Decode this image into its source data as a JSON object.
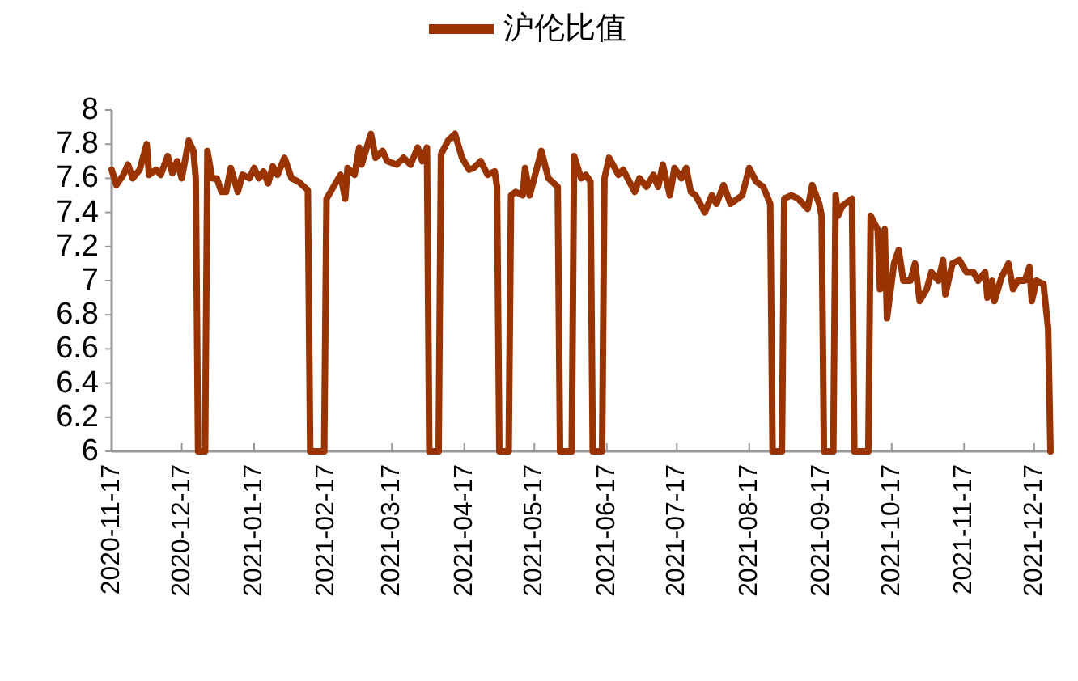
{
  "chart_data": {
    "type": "line",
    "legend": "top",
    "grid": false,
    "marker": "none",
    "line_style": "solid",
    "xlim": [
      "2020-11-17",
      "2021-12-24"
    ],
    "xticks": [
      "2020-11-17",
      "2020-12-17",
      "2021-01-17",
      "2021-02-17",
      "2021-03-17",
      "2021-04-17",
      "2021-05-17",
      "2021-06-17",
      "2021-07-17",
      "2021-08-17",
      "2021-09-17",
      "2021-10-17",
      "2021-11-17",
      "2021-12-17"
    ],
    "ylim": [
      6,
      8
    ],
    "yticks": [
      6,
      6.2,
      6.4,
      6.6,
      6.8,
      7,
      7.2,
      7.4,
      7.6,
      7.8,
      8
    ],
    "x": [
      "2020-11-17",
      "2020-11-19",
      "2020-11-22",
      "2020-11-24",
      "2020-11-26",
      "2020-11-29",
      "2020-12-02",
      "2020-12-03",
      "2020-12-06",
      "2020-12-08",
      "2020-12-11",
      "2020-12-13",
      "2020-12-15",
      "2020-12-17",
      "2020-12-20",
      "2020-12-22",
      "2020-12-23",
      "2020-12-24",
      "2020-12-27",
      "2020-12-28",
      "2020-12-30",
      "2021-01-01",
      "2021-01-03",
      "2021-01-05",
      "2021-01-07",
      "2021-01-10",
      "2021-01-12",
      "2021-01-15",
      "2021-01-17",
      "2021-01-19",
      "2021-01-21",
      "2021-01-23",
      "2021-01-25",
      "2021-01-27",
      "2021-01-30",
      "2021-02-02",
      "2021-02-05",
      "2021-02-09",
      "2021-02-10",
      "2021-02-16",
      "2021-02-17",
      "2021-02-20",
      "2021-02-23",
      "2021-02-25",
      "2021-02-26",
      "2021-03-01",
      "2021-03-03",
      "2021-03-04",
      "2021-03-08",
      "2021-03-10",
      "2021-03-13",
      "2021-03-15",
      "2021-03-19",
      "2021-03-22",
      "2021-03-25",
      "2021-03-28",
      "2021-03-30",
      "2021-04-01",
      "2021-04-02",
      "2021-04-06",
      "2021-04-07",
      "2021-04-10",
      "2021-04-13",
      "2021-04-16",
      "2021-04-19",
      "2021-04-21",
      "2021-04-24",
      "2021-04-27",
      "2021-04-30",
      "2021-05-01",
      "2021-05-02",
      "2021-05-06",
      "2021-05-07",
      "2021-05-09",
      "2021-05-12",
      "2021-05-13",
      "2021-05-15",
      "2021-05-20",
      "2021-05-23",
      "2021-05-27",
      "2021-05-28",
      "2021-06-02",
      "2021-06-03",
      "2021-06-06",
      "2021-06-08",
      "2021-06-10",
      "2021-06-11",
      "2021-06-15",
      "2021-06-16",
      "2021-06-18",
      "2021-06-22",
      "2021-06-24",
      "2021-06-29",
      "2021-07-01",
      "2021-07-04",
      "2021-07-07",
      "2021-07-09",
      "2021-07-11",
      "2021-07-14",
      "2021-07-16",
      "2021-07-19",
      "2021-07-21",
      "2021-07-23",
      "2021-07-25",
      "2021-07-29",
      "2021-08-01",
      "2021-08-03",
      "2021-08-06",
      "2021-08-09",
      "2021-08-12",
      "2021-08-14",
      "2021-08-17",
      "2021-08-20",
      "2021-08-23",
      "2021-08-26",
      "2021-08-27",
      "2021-08-31",
      "2021-09-01",
      "2021-09-04",
      "2021-09-07",
      "2021-09-09",
      "2021-09-11",
      "2021-09-13",
      "2021-09-16",
      "2021-09-17",
      "2021-09-18",
      "2021-09-22",
      "2021-09-23",
      "2021-09-24",
      "2021-09-26",
      "2021-09-28",
      "2021-09-30",
      "2021-10-01",
      "2021-10-07",
      "2021-10-08",
      "2021-10-11",
      "2021-10-12",
      "2021-10-14",
      "2021-10-15",
      "2021-10-18",
      "2021-10-20",
      "2021-10-22",
      "2021-10-25",
      "2021-10-27",
      "2021-10-29",
      "2021-11-01",
      "2021-11-03",
      "2021-11-06",
      "2021-11-08",
      "2021-11-09",
      "2021-11-12",
      "2021-11-15",
      "2021-11-18",
      "2021-11-21",
      "2021-11-23",
      "2021-11-26",
      "2021-11-27",
      "2021-11-29",
      "2021-11-30",
      "2021-12-03",
      "2021-12-06",
      "2021-12-08",
      "2021-12-10",
      "2021-12-13",
      "2021-12-15",
      "2021-12-16",
      "2021-12-18",
      "2021-12-21",
      "2021-12-23",
      "2021-12-24"
    ],
    "series": [
      {
        "name": "沪伦比值",
        "color": "#993300",
        "values": [
          7.65,
          7.56,
          7.62,
          7.68,
          7.6,
          7.65,
          7.8,
          7.62,
          7.65,
          7.62,
          7.73,
          7.63,
          7.7,
          7.6,
          7.82,
          7.76,
          7.6,
          6,
          6,
          7.76,
          7.6,
          7.6,
          7.52,
          7.52,
          7.66,
          7.52,
          7.62,
          7.6,
          7.66,
          7.6,
          7.64,
          7.57,
          7.67,
          7.62,
          7.72,
          7.6,
          7.58,
          7.53,
          6,
          6,
          7.48,
          7.55,
          7.62,
          7.48,
          7.66,
          7.62,
          7.78,
          7.68,
          7.86,
          7.72,
          7.76,
          7.7,
          7.68,
          7.72,
          7.68,
          7.78,
          7.7,
          7.78,
          6,
          6,
          7.74,
          7.82,
          7.86,
          7.72,
          7.65,
          7.66,
          7.7,
          7.62,
          7.64,
          7.55,
          6,
          6,
          7.5,
          7.52,
          7.5,
          7.66,
          7.5,
          7.76,
          7.6,
          7.55,
          6,
          6,
          7.73,
          7.6,
          7.62,
          7.58,
          6,
          6,
          7.6,
          7.72,
          7.62,
          7.65,
          7.52,
          7.6,
          7.55,
          7.62,
          7.55,
          7.68,
          7.5,
          7.66,
          7.6,
          7.66,
          7.52,
          7.5,
          7.4,
          7.5,
          7.45,
          7.56,
          7.45,
          7.48,
          7.5,
          7.66,
          7.58,
          7.55,
          7.45,
          6,
          6,
          7.48,
          7.5,
          7.48,
          7.45,
          7.42,
          7.56,
          7.45,
          7.38,
          6,
          6,
          7.5,
          7.38,
          7.44,
          7.46,
          7.48,
          6,
          6,
          7.38,
          7.3,
          6.95,
          7.3,
          6.78,
          7.1,
          7.18,
          7,
          7,
          7.1,
          6.88,
          6.95,
          7.05,
          7,
          7.12,
          6.92,
          7.1,
          7.12,
          7.05,
          7.05,
          7,
          7.05,
          6.9,
          7,
          6.88,
          7.02,
          7.1,
          6.95,
          7,
          7,
          7.08,
          6.88,
          7,
          6.98,
          6.72,
          6
        ]
      }
    ]
  }
}
